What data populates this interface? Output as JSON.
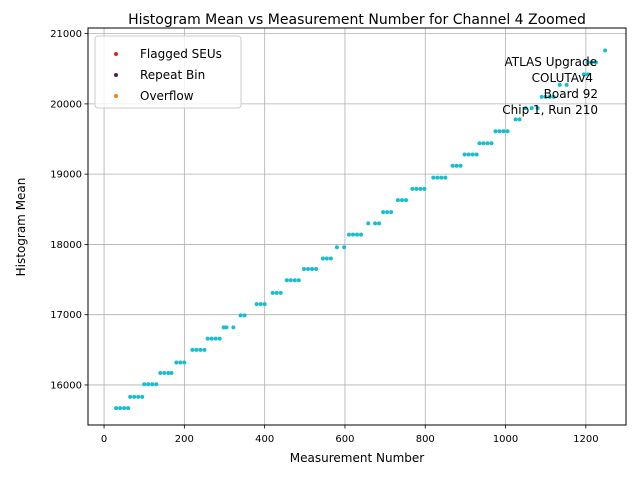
{
  "chart_data": {
    "type": "scatter",
    "title": "Histogram Mean vs Measurement Number for Channel 4 Zoomed",
    "xlabel": "Measurement Number",
    "ylabel": "Histogram Mean",
    "xlim": [
      -40,
      1300
    ],
    "ylim": [
      15430,
      21080
    ],
    "xticks": [
      0,
      200,
      400,
      600,
      800,
      1000,
      1200
    ],
    "yticks": [
      16000,
      17000,
      18000,
      19000,
      20000,
      21000
    ],
    "grid": true,
    "legend_position": "upper-left",
    "legend": [
      {
        "label": "Flagged SEUs",
        "color": "#d62728"
      },
      {
        "label": "Repeat Bin",
        "color": "#5c1a5c"
      },
      {
        "label": "Overflow",
        "color": "#ff7f0e"
      }
    ],
    "annotation_lines": [
      "ATLAS Upgrade",
      "COLUTAv4",
      "Board 92",
      "Chip 1, Run 210"
    ],
    "series": [
      {
        "name": "",
        "color": "#17becf",
        "points": [
          [
            30,
            15670
          ],
          [
            40,
            15670
          ],
          [
            50,
            15670
          ],
          [
            60,
            15670
          ],
          [
            65,
            15830
          ],
          [
            75,
            15830
          ],
          [
            85,
            15830
          ],
          [
            95,
            15830
          ],
          [
            100,
            16010
          ],
          [
            110,
            16010
          ],
          [
            120,
            16010
          ],
          [
            130,
            16010
          ],
          [
            140,
            16170
          ],
          [
            150,
            16170
          ],
          [
            160,
            16170
          ],
          [
            168,
            16170
          ],
          [
            180,
            16320
          ],
          [
            190,
            16320
          ],
          [
            200,
            16320
          ],
          [
            220,
            16500
          ],
          [
            230,
            16500
          ],
          [
            240,
            16500
          ],
          [
            250,
            16500
          ],
          [
            258,
            16660
          ],
          [
            268,
            16660
          ],
          [
            278,
            16660
          ],
          [
            288,
            16660
          ],
          [
            298,
            16820
          ],
          [
            305,
            16820
          ],
          [
            322,
            16820
          ],
          [
            340,
            16990
          ],
          [
            350,
            16990
          ],
          [
            380,
            17150
          ],
          [
            390,
            17150
          ],
          [
            400,
            17150
          ],
          [
            420,
            17310
          ],
          [
            430,
            17310
          ],
          [
            440,
            17310
          ],
          [
            455,
            17490
          ],
          [
            465,
            17490
          ],
          [
            475,
            17490
          ],
          [
            485,
            17490
          ],
          [
            498,
            17650
          ],
          [
            508,
            17650
          ],
          [
            518,
            17650
          ],
          [
            528,
            17650
          ],
          [
            545,
            17800
          ],
          [
            555,
            17800
          ],
          [
            565,
            17800
          ],
          [
            580,
            17960
          ],
          [
            598,
            17960
          ],
          [
            610,
            18140
          ],
          [
            620,
            18140
          ],
          [
            630,
            18140
          ],
          [
            640,
            18140
          ],
          [
            658,
            18300
          ],
          [
            675,
            18300
          ],
          [
            685,
            18300
          ],
          [
            695,
            18460
          ],
          [
            705,
            18460
          ],
          [
            715,
            18460
          ],
          [
            732,
            18630
          ],
          [
            742,
            18630
          ],
          [
            752,
            18630
          ],
          [
            768,
            18790
          ],
          [
            778,
            18790
          ],
          [
            788,
            18790
          ],
          [
            798,
            18790
          ],
          [
            820,
            18950
          ],
          [
            830,
            18950
          ],
          [
            840,
            18950
          ],
          [
            850,
            18950
          ],
          [
            868,
            19120
          ],
          [
            878,
            19120
          ],
          [
            888,
            19120
          ],
          [
            898,
            19280
          ],
          [
            908,
            19280
          ],
          [
            918,
            19280
          ],
          [
            928,
            19280
          ],
          [
            935,
            19440
          ],
          [
            945,
            19440
          ],
          [
            955,
            19440
          ],
          [
            965,
            19440
          ],
          [
            975,
            19610
          ],
          [
            985,
            19610
          ],
          [
            995,
            19610
          ],
          [
            1005,
            19610
          ],
          [
            1025,
            19780
          ],
          [
            1035,
            19780
          ],
          [
            1050,
            19940
          ],
          [
            1065,
            19940
          ],
          [
            1080,
            19940
          ],
          [
            1090,
            20100
          ],
          [
            1100,
            20100
          ],
          [
            1110,
            20100
          ],
          [
            1120,
            20100
          ],
          [
            1135,
            20270
          ],
          [
            1152,
            20270
          ],
          [
            1195,
            20420
          ],
          [
            1205,
            20420
          ],
          [
            1205,
            20590
          ],
          [
            1215,
            20590
          ],
          [
            1225,
            20590
          ],
          [
            1248,
            20760
          ]
        ]
      }
    ]
  }
}
